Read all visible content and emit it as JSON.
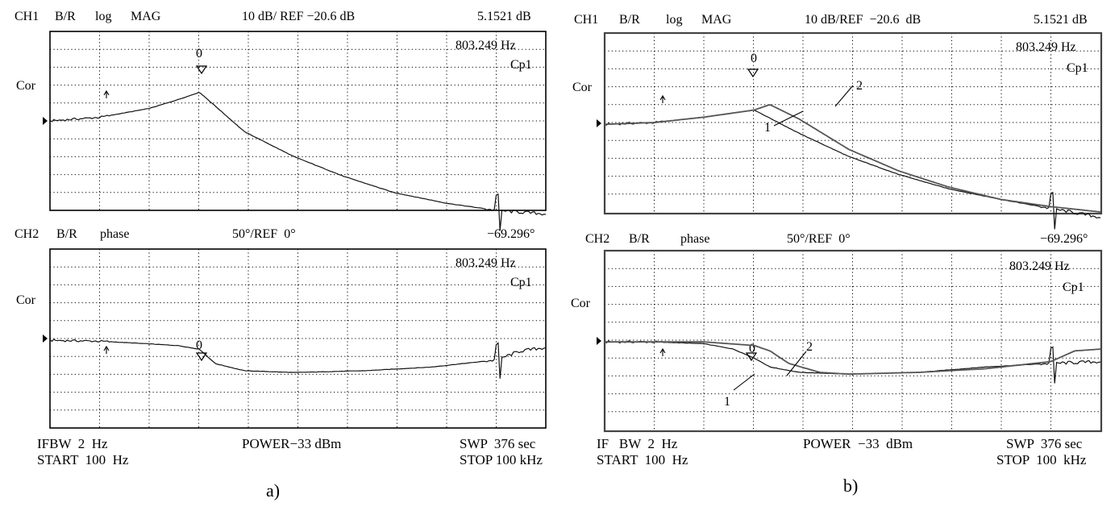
{
  "figure_a": {
    "caption": "a)",
    "ch1": {
      "header": {
        "ch": "CH1",
        "br": "B/R",
        "fmt": "log",
        "fmt2": "MAG",
        "scale": "10 dB/ REF −20.6 dB",
        "value": "5.1521 dB"
      },
      "freq": "803.249 Hz",
      "cp": "Cp1",
      "cor": "Cor",
      "marker": "0"
    },
    "ch2": {
      "header": {
        "ch": "CH2",
        "br": "B/R",
        "fmt": "phase",
        "scale": "50°/REF  0°",
        "value": "−69.296°"
      },
      "freq": "803.249 Hz",
      "cp": "Cp1",
      "cor": "Cor",
      "marker": "0"
    },
    "footer": {
      "ifbw": "IFBW  2  Hz",
      "start": "START  100  Hz",
      "power": "POWER−33 dBm",
      "swp": "SWP  376 sec",
      "stop": "STOP 100 kHz"
    }
  },
  "figure_b": {
    "caption": "b)",
    "ch1": {
      "header": {
        "ch": "CH1",
        "br": "B/R",
        "fmt": "log",
        "fmt2": "MAG",
        "scale": "10 dB/REF  −20.6  dB",
        "value": "5.1521 dB"
      },
      "freq": "803.249 Hz",
      "cp": "Cp1",
      "cor": "Cor",
      "marker": "0",
      "label1": "1",
      "label2": "2"
    },
    "ch2": {
      "header": {
        "ch": "CH2",
        "br": "B/R",
        "fmt": "phase",
        "scale": "50°/REF  0°",
        "value": "−69.296°"
      },
      "freq": "803.249 Hz",
      "cp": "Cp1",
      "cor": "Cor",
      "marker": "0",
      "label1": "1",
      "label2": "2"
    },
    "footer": {
      "ifbw": "IF   BW  2  Hz",
      "start": "START  100  Hz",
      "power": "POWER  −33  dBm",
      "swp": "SWP  376 sec",
      "stop": "STOP  100  kHz"
    }
  },
  "chart_data": [
    {
      "type": "line",
      "panel": "a-ch1",
      "x_scale": "log",
      "xlim": [
        100,
        100000
      ],
      "grid": true,
      "series": [
        {
          "x": [
            100,
            200,
            400,
            600,
            803.249,
            1500,
            3000,
            6000,
            12000,
            25000,
            50000,
            100000
          ],
          "y": [
            0.0,
            0.2,
            0.7,
            1.2,
            1.6,
            -0.6,
            -2.0,
            -3.1,
            -4.0,
            -4.6,
            -5.0,
            -5.2
          ]
        }
      ]
    },
    {
      "type": "line",
      "panel": "a-ch2",
      "x_scale": "log",
      "xlim": [
        100,
        100000
      ],
      "grid": true,
      "series": [
        {
          "x": [
            100,
            200,
            400,
            600,
            803.249,
            1000,
            1500,
            3000,
            8000,
            20000,
            50000,
            70000,
            100000
          ],
          "y": [
            -0.1,
            -0.15,
            -0.3,
            -0.4,
            -0.6,
            -1.4,
            -1.8,
            -1.9,
            -1.8,
            -1.6,
            -1.2,
            -0.7,
            -0.5
          ]
        }
      ]
    },
    {
      "type": "line",
      "panel": "b-ch1",
      "x_scale": "log",
      "xlim": [
        100,
        100000
      ],
      "grid": true,
      "series": [
        {
          "name": "1",
          "x": [
            100,
            200,
            400,
            803.249,
            1500,
            3000,
            6000,
            12000,
            25000,
            50000,
            100000
          ],
          "y": [
            -0.1,
            0.0,
            0.3,
            0.7,
            -0.6,
            -1.9,
            -2.9,
            -3.7,
            -4.3,
            -4.8,
            -5.3
          ]
        },
        {
          "name": "2",
          "x": [
            100,
            200,
            400,
            803.249,
            1000,
            1500,
            3000,
            6000,
            12000,
            25000,
            50000,
            100000
          ],
          "y": [
            -0.1,
            0.0,
            0.3,
            0.7,
            1.0,
            0.2,
            -1.5,
            -2.7,
            -3.6,
            -4.3,
            -4.7,
            -5.0
          ]
        }
      ]
    },
    {
      "type": "line",
      "panel": "b-ch2",
      "x_scale": "log",
      "xlim": [
        100,
        100000
      ],
      "grid": true,
      "series": [
        {
          "name": "1",
          "x": [
            100,
            200,
            400,
            600,
            803.249,
            1000,
            1500,
            3000,
            8000,
            20000,
            50000,
            100000
          ],
          "y": [
            -0.1,
            -0.1,
            -0.2,
            -0.5,
            -1.0,
            -1.5,
            -1.8,
            -1.9,
            -1.8,
            -1.5,
            -1.3,
            -1.2
          ]
        },
        {
          "name": "2",
          "x": [
            100,
            200,
            400,
            803.249,
            1000,
            1300,
            2000,
            3000,
            8000,
            20000,
            50000,
            70000,
            100000
          ],
          "y": [
            -0.1,
            -0.1,
            -0.1,
            -0.3,
            -0.6,
            -1.3,
            -1.8,
            -1.9,
            -1.8,
            -1.6,
            -1.2,
            -0.6,
            -0.5
          ]
        }
      ]
    }
  ]
}
